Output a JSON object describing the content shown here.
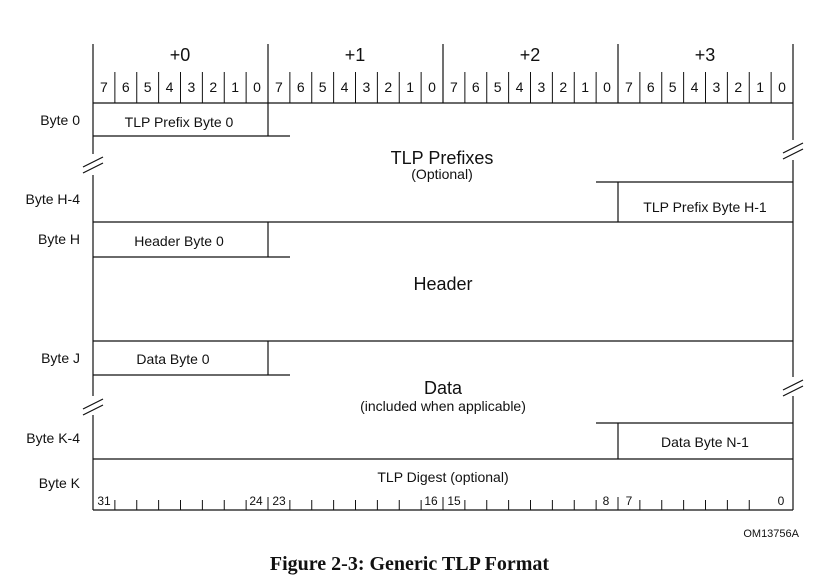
{
  "byte_columns": [
    "+0",
    "+1",
    "+2",
    "+3"
  ],
  "bit_labels": [
    "7",
    "6",
    "5",
    "4",
    "3",
    "2",
    "1",
    "0",
    "7",
    "6",
    "5",
    "4",
    "3",
    "2",
    "1",
    "0",
    "7",
    "6",
    "5",
    "4",
    "3",
    "2",
    "1",
    "0",
    "7",
    "6",
    "5",
    "4",
    "3",
    "2",
    "1",
    "0"
  ],
  "row_labels": {
    "byte0": "Byte 0",
    "byte_h4": "Byte H-4",
    "byte_h": "Byte H",
    "byte_j": "Byte J",
    "byte_k4": "Byte K-4",
    "byte_k": "Byte K"
  },
  "sections": {
    "prefix_first": "TLP Prefix Byte 0",
    "prefixes_title": "TLP Prefixes",
    "prefixes_sub": "(Optional)",
    "prefix_last": "TLP Prefix Byte H-1",
    "header_first": "Header Byte 0",
    "header_title": "Header",
    "data_first": "Data Byte 0",
    "data_title": "Data",
    "data_sub": "(included when applicable)",
    "data_last": "Data Byte N-1",
    "digest_main": "TLP Digest",
    "digest_sub": "(optional)"
  },
  "digest_bits": {
    "b31": "31",
    "b24": "24",
    "b23": "23",
    "b16": "16",
    "b15": "15",
    "b8": "8",
    "b7": "7",
    "b0": "0"
  },
  "figure_code": "OM13756A",
  "caption": "Figure 2-3:  Generic TLP Format"
}
